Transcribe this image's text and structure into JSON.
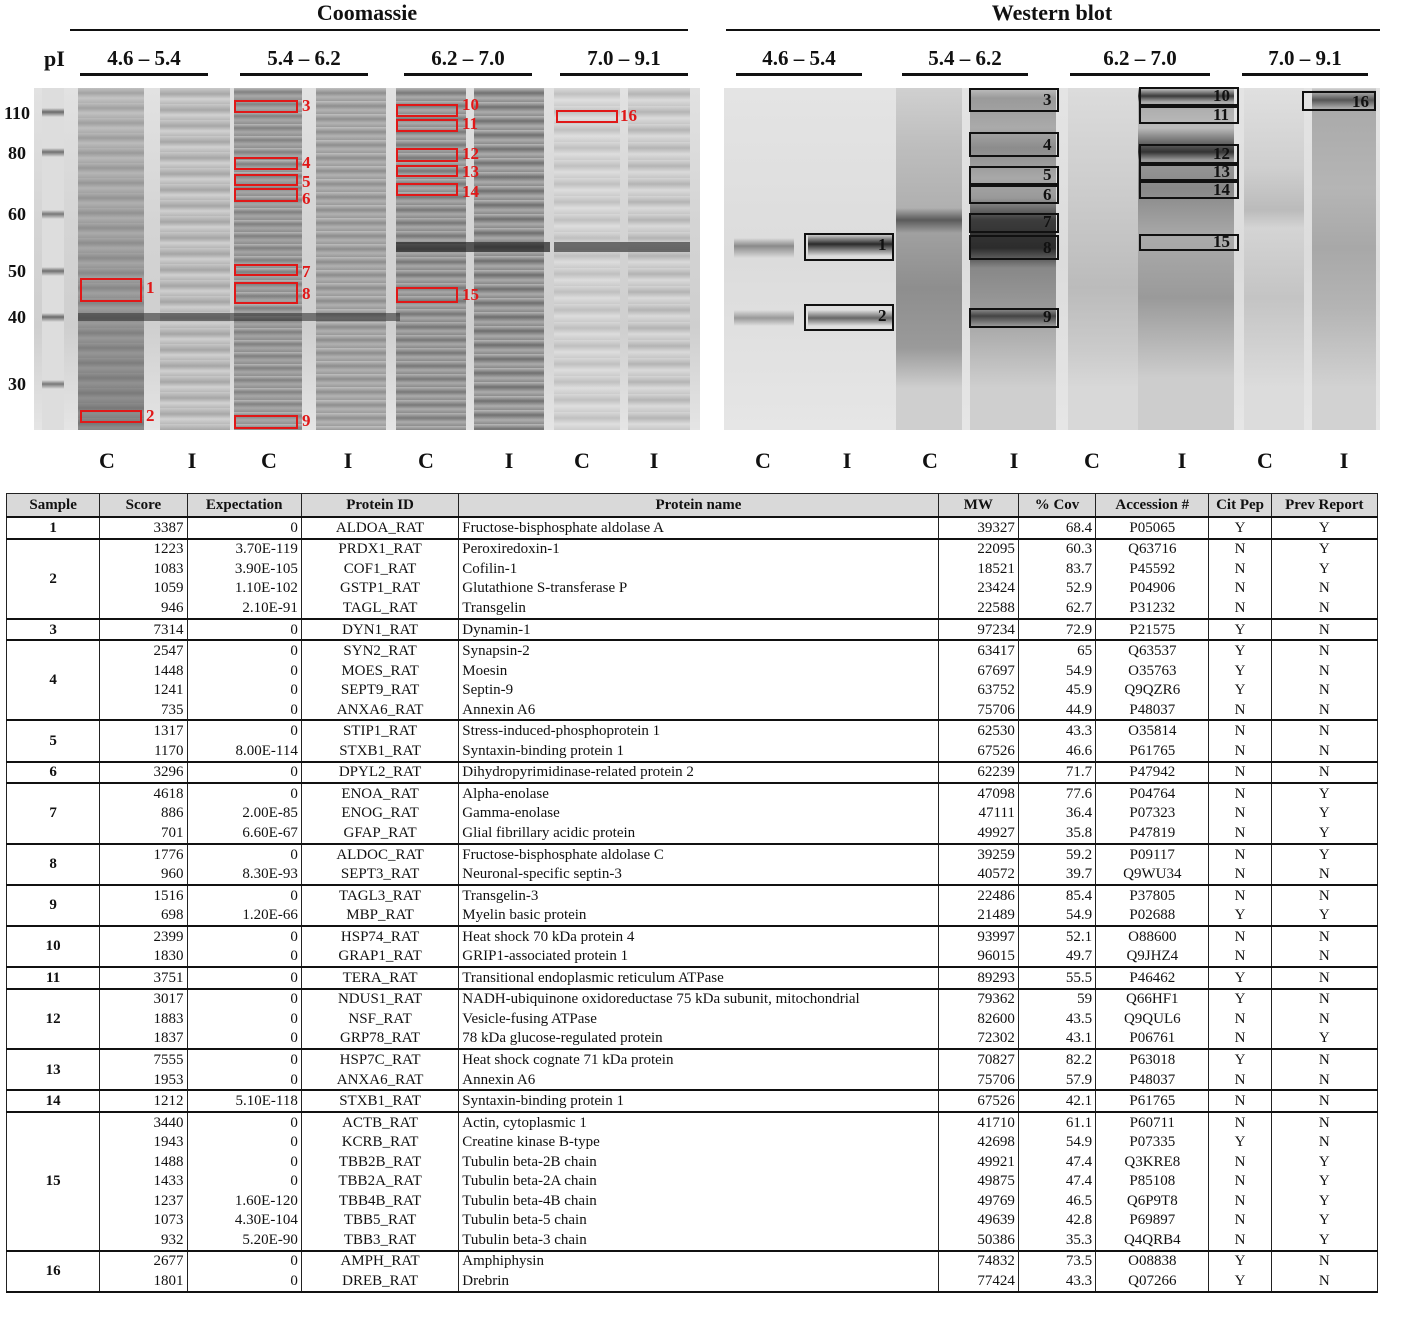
{
  "figure": {
    "panels": [
      {
        "title": "Coomassie",
        "ranges": [
          "4.6 – 5.4",
          "5.4 – 6.2",
          "6.2 – 7.0",
          "7.0 – 9.1"
        ]
      },
      {
        "title": "Western blot",
        "ranges": [
          "4.6 – 5.4",
          "5.4 – 6.2",
          "6.2 – 7.0",
          "7.0 – 9.1"
        ]
      }
    ],
    "pi_label": "pI",
    "markers": [
      "110",
      "80",
      "60",
      "50",
      "40",
      "30"
    ],
    "lane_codes": [
      "C",
      "I",
      "C",
      "I",
      "C",
      "I",
      "C",
      "I",
      "C",
      "I",
      "C",
      "I",
      "C",
      "I",
      "C",
      "I"
    ],
    "box_labels": [
      "1",
      "2",
      "3",
      "4",
      "5",
      "6",
      "7",
      "8",
      "9",
      "10",
      "11",
      "12",
      "13",
      "14",
      "15",
      "16"
    ],
    "colors": {
      "coomassie_box": "#e01818",
      "western_box": "#111111"
    }
  },
  "table": {
    "headers": [
      "Sample",
      "Score",
      "Expectation",
      "Protein ID",
      "Protein name",
      "MW",
      "% Cov",
      "Accession #",
      "Cit Pep",
      "Prev Report"
    ],
    "groups": [
      {
        "sample": "1",
        "rows": [
          [
            "3387",
            "0",
            "ALDOA_RAT",
            "Fructose-bisphosphate aldolase A",
            "39327",
            "68.4",
            "P05065",
            "Y",
            "Y"
          ]
        ]
      },
      {
        "sample": "2",
        "rows": [
          [
            "1223",
            "3.70E-119",
            "PRDX1_RAT",
            "Peroxiredoxin-1",
            "22095",
            "60.3",
            "Q63716",
            "N",
            "Y"
          ],
          [
            "1083",
            "3.90E-105",
            "COF1_RAT",
            "Cofilin-1",
            "18521",
            "83.7",
            "P45592",
            "N",
            "Y"
          ],
          [
            "1059",
            "1.10E-102",
            "GSTP1_RAT",
            "Glutathione S-transferase P",
            "23424",
            "52.9",
            "P04906",
            "N",
            "N"
          ],
          [
            "946",
            "2.10E-91",
            "TAGL_RAT",
            "Transgelin",
            "22588",
            "62.7",
            "P31232",
            "N",
            "N"
          ]
        ]
      },
      {
        "sample": "3",
        "rows": [
          [
            "7314",
            "0",
            "DYN1_RAT",
            "Dynamin-1",
            "97234",
            "72.9",
            "P21575",
            "Y",
            "N"
          ]
        ]
      },
      {
        "sample": "4",
        "rows": [
          [
            "2547",
            "0",
            "SYN2_RAT",
            "Synapsin-2",
            "63417",
            "65",
            "Q63537",
            "Y",
            "N"
          ],
          [
            "1448",
            "0",
            "MOES_RAT",
            "Moesin",
            "67697",
            "54.9",
            "O35763",
            "Y",
            "N"
          ],
          [
            "1241",
            "0",
            "SEPT9_RAT",
            "Septin-9",
            "63752",
            "45.9",
            "Q9QZR6",
            "Y",
            "N"
          ],
          [
            "735",
            "0",
            "ANXA6_RAT",
            "Annexin A6",
            "75706",
            "44.9",
            "P48037",
            "N",
            "N"
          ]
        ]
      },
      {
        "sample": "5",
        "rows": [
          [
            "1317",
            "0",
            "STIP1_RAT",
            "Stress-induced-phosphoprotein 1",
            "62530",
            "43.3",
            "O35814",
            "N",
            "N"
          ],
          [
            "1170",
            "8.00E-114",
            "STXB1_RAT",
            "Syntaxin-binding protein 1",
            "67526",
            "46.6",
            "P61765",
            "N",
            "N"
          ]
        ]
      },
      {
        "sample": "6",
        "rows": [
          [
            "3296",
            "0",
            "DPYL2_RAT",
            "Dihydropyrimidinase-related protein 2",
            "62239",
            "71.7",
            "P47942",
            "N",
            "N"
          ]
        ]
      },
      {
        "sample": "7",
        "rows": [
          [
            "4618",
            "0",
            "ENOA_RAT",
            "Alpha-enolase",
            "47098",
            "77.6",
            "P04764",
            "N",
            "Y"
          ],
          [
            "886",
            "2.00E-85",
            "ENOG_RAT",
            "Gamma-enolase",
            "47111",
            "36.4",
            "P07323",
            "N",
            "Y"
          ],
          [
            "701",
            "6.60E-67",
            "GFAP_RAT",
            "Glial fibrillary acidic protein",
            "49927",
            "35.8",
            "P47819",
            "N",
            "Y"
          ]
        ]
      },
      {
        "sample": "8",
        "rows": [
          [
            "1776",
            "0",
            "ALDOC_RAT",
            "Fructose-bisphosphate aldolase C",
            "39259",
            "59.2",
            "P09117",
            "N",
            "Y"
          ],
          [
            "960",
            "8.30E-93",
            "SEPT3_RAT",
            "Neuronal-specific septin-3",
            "40572",
            "39.7",
            "Q9WU34",
            "N",
            "N"
          ]
        ]
      },
      {
        "sample": "9",
        "rows": [
          [
            "1516",
            "0",
            "TAGL3_RAT",
            "Transgelin-3",
            "22486",
            "85.4",
            "P37805",
            "N",
            "N"
          ],
          [
            "698",
            "1.20E-66",
            "MBP_RAT",
            "Myelin basic protein",
            "21489",
            "54.9",
            "P02688",
            "Y",
            "Y"
          ]
        ]
      },
      {
        "sample": "10",
        "rows": [
          [
            "2399",
            "0",
            "HSP74_RAT",
            "Heat shock 70 kDa protein 4",
            "93997",
            "52.1",
            "O88600",
            "N",
            "N"
          ],
          [
            "1830",
            "0",
            "GRAP1_RAT",
            "GRIP1-associated protein 1",
            "96015",
            "49.7",
            "Q9JHZ4",
            "N",
            "N"
          ]
        ]
      },
      {
        "sample": "11",
        "rows": [
          [
            "3751",
            "0",
            "TERA_RAT",
            "Transitional endoplasmic reticulum ATPase",
            "89293",
            "55.5",
            "P46462",
            "Y",
            "N"
          ]
        ]
      },
      {
        "sample": "12",
        "rows": [
          [
            "3017",
            "0",
            "NDUS1_RAT",
            "NADH-ubiquinone oxidoreductase 75 kDa subunit, mitochondrial",
            "79362",
            "59",
            "Q66HF1",
            "Y",
            "N"
          ],
          [
            "1883",
            "0",
            "NSF_RAT",
            "Vesicle-fusing ATPase",
            "82600",
            "43.5",
            "Q9QUL6",
            "N",
            "N"
          ],
          [
            "1837",
            "0",
            "GRP78_RAT",
            "78 kDa glucose-regulated protein",
            "72302",
            "43.1",
            "P06761",
            "N",
            "Y"
          ]
        ]
      },
      {
        "sample": "13",
        "rows": [
          [
            "7555",
            "0",
            "HSP7C_RAT",
            "Heat shock cognate 71 kDa protein",
            "70827",
            "82.2",
            "P63018",
            "Y",
            "N"
          ],
          [
            "1953",
            "0",
            "ANXA6_RAT",
            "Annexin A6",
            "75706",
            "57.9",
            "P48037",
            "N",
            "N"
          ]
        ]
      },
      {
        "sample": "14",
        "rows": [
          [
            "1212",
            "5.10E-118",
            "STXB1_RAT",
            "Syntaxin-binding protein 1",
            "67526",
            "42.1",
            "P61765",
            "N",
            "N"
          ]
        ]
      },
      {
        "sample": "15",
        "rows": [
          [
            "3440",
            "0",
            "ACTB_RAT",
            "Actin, cytoplasmic 1",
            "41710",
            "61.1",
            "P60711",
            "N",
            "N"
          ],
          [
            "1943",
            "0",
            "KCRB_RAT",
            "Creatine kinase B-type",
            "42698",
            "54.9",
            "P07335",
            "Y",
            "N"
          ],
          [
            "1488",
            "0",
            "TBB2B_RAT",
            "Tubulin beta-2B chain",
            "49921",
            "47.4",
            "Q3KRE8",
            "N",
            "Y"
          ],
          [
            "1433",
            "0",
            "TBB2A_RAT",
            "Tubulin beta-2A chain",
            "49875",
            "47.4",
            "P85108",
            "N",
            "Y"
          ],
          [
            "1237",
            "1.60E-120",
            "TBB4B_RAT",
            "Tubulin beta-4B chain",
            "49769",
            "46.5",
            "Q6P9T8",
            "N",
            "Y"
          ],
          [
            "1073",
            "4.30E-104",
            "TBB5_RAT",
            "Tubulin beta-5 chain",
            "49639",
            "42.8",
            "P69897",
            "N",
            "Y"
          ],
          [
            "932",
            "5.20E-90",
            "TBB3_RAT",
            "Tubulin beta-3 chain",
            "50386",
            "35.3",
            "Q4QRB4",
            "N",
            "Y"
          ]
        ]
      },
      {
        "sample": "16",
        "rows": [
          [
            "2677",
            "0",
            "AMPH_RAT",
            "Amphiphysin",
            "74832",
            "73.5",
            "O08838",
            "Y",
            "N"
          ],
          [
            "1801",
            "0",
            "DREB_RAT",
            "Drebrin",
            "77424",
            "43.3",
            "Q07266",
            "Y",
            "N"
          ]
        ]
      }
    ]
  }
}
